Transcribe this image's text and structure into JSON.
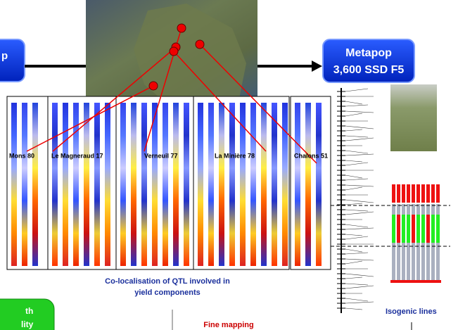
{
  "left_box": {
    "label": "p"
  },
  "metapop_box": {
    "title": "Metapop",
    "subtitle": "3,600 SSD F5"
  },
  "locations": [
    "Mons 80",
    "Le Magneraud 17",
    "Verneuil 77",
    "La Minière 78",
    "Chalons 51"
  ],
  "caption": {
    "line1": "Co-localisation of QTL involved in",
    "line2": "yield components"
  },
  "fine_mapping": "Fine mapping",
  "isogenic_lines": "Isogenic lines",
  "green_box": {
    "line1": "th",
    "line2": "lity"
  }
}
